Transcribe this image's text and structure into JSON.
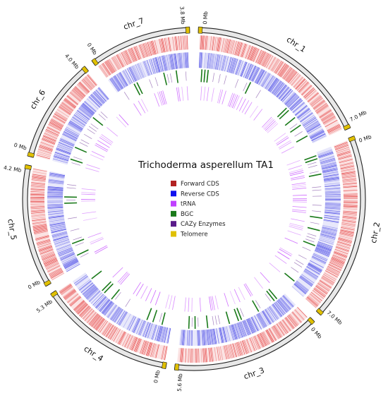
{
  "title": "Trichoderma asperellum TA1",
  "chromosomes": [
    {
      "id": "chr_1",
      "label": "chr_1",
      "start_label": "0 Mb",
      "end_label": "7.0 Mb"
    },
    {
      "id": "chr_2",
      "label": "chr_2",
      "start_label": "0 Mb",
      "end_label": "7.0 Mb"
    },
    {
      "id": "chr_3",
      "label": "chr_3",
      "start_label": "0 Mb",
      "end_label": "5.6 Mb"
    },
    {
      "id": "chr_4",
      "label": "chr_4",
      "start_label": "0 Mb",
      "end_label": "5.3 Mb"
    },
    {
      "id": "chr_5",
      "label": "chr_5",
      "start_label": "0 Mb",
      "end_label": "4.2 Mb"
    },
    {
      "id": "chr_6",
      "label": "chr_6",
      "start_label": "0 Mb",
      "end_label": "4.0 Mb"
    },
    {
      "id": "chr_7",
      "label": "chr_7",
      "start_label": "0 Mb",
      "end_label": "3.8 Mb"
    }
  ],
  "legend": [
    {
      "label": "Forward CDS",
      "color": "#b22222"
    },
    {
      "label": "Reverse CDS",
      "color": "#1010ee"
    },
    {
      "label": "tRNA",
      "color": "#c040ff"
    },
    {
      "label": "BGC",
      "color": "#1a7a1a"
    },
    {
      "label": "CAZy Enzymes",
      "color": "#5a1a8a"
    },
    {
      "label": "Telomere",
      "color": "#e0c000"
    }
  ],
  "colors": {
    "forward_cds": "#e02020",
    "reverse_cds": "#2020e0",
    "trna": "#c040ff",
    "bgc": "#1a7a1a",
    "cazy": "#5a1a8a",
    "telomere": "#e0c000",
    "ideogram_fill": "#e8e8e8",
    "ideogram_stroke": "#222222"
  }
}
